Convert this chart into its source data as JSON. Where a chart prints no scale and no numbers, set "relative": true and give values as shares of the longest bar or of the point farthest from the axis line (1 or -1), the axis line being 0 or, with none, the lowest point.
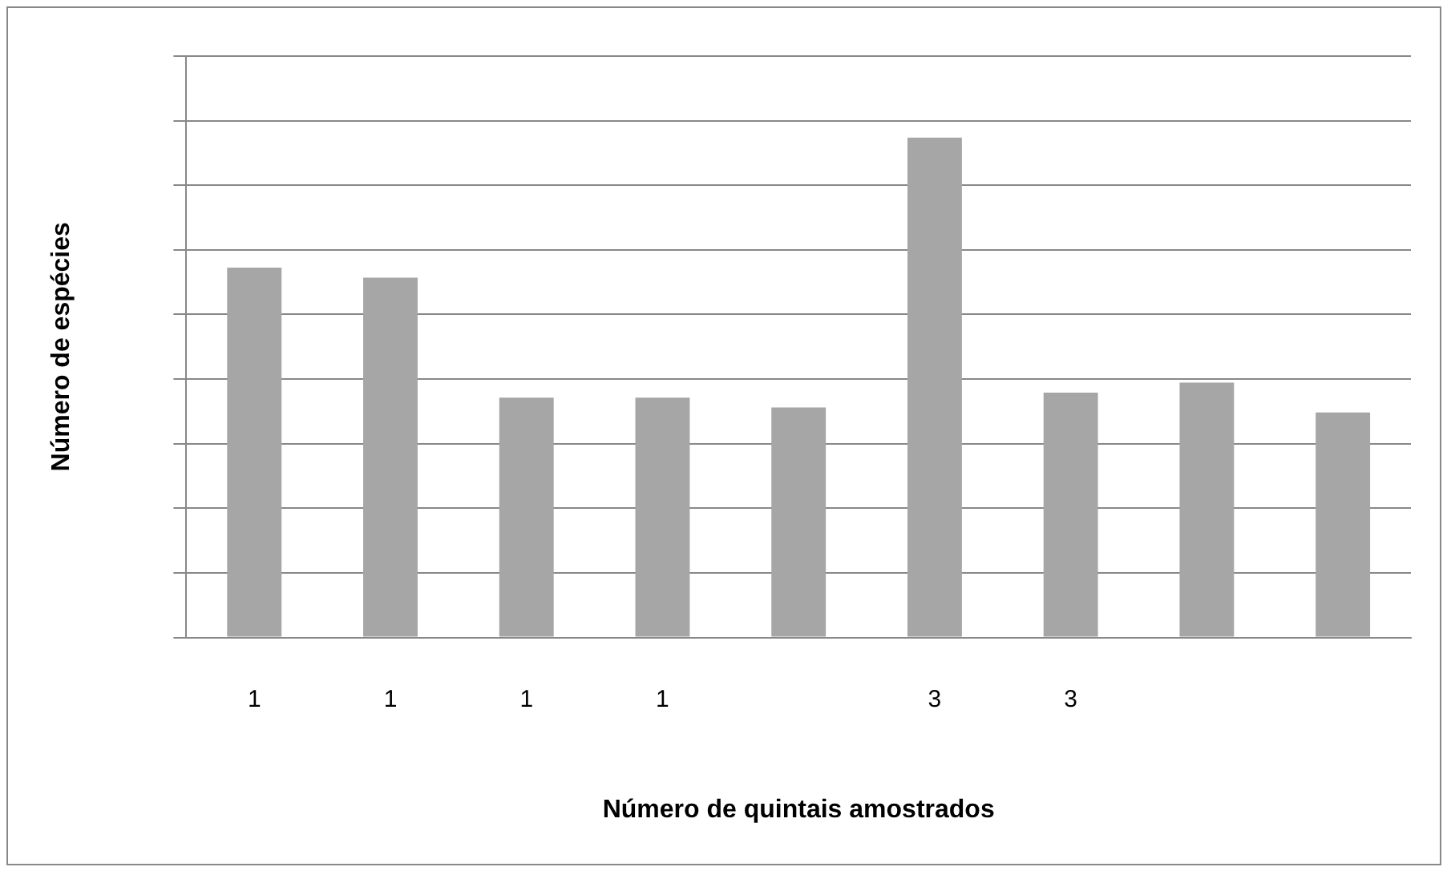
{
  "chart_data": {
    "type": "bar",
    "relative": true,
    "xlabel": "Número de quintais amostrados",
    "ylabel": "Número de espécies",
    "categories": [
      "1",
      "1",
      "1",
      "1",
      null,
      "3",
      "3",
      null,
      null
    ],
    "values": [
      0.74,
      0.72,
      0.48,
      0.48,
      0.46,
      1,
      0.49,
      0.51,
      0.45
    ],
    "color": "#a6a6a6",
    "grid": "y",
    "legend": false
  }
}
